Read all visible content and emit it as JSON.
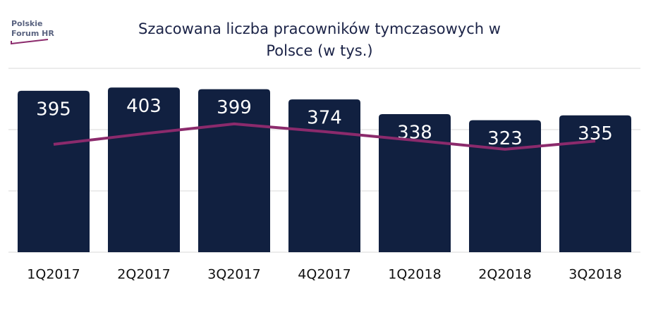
{
  "chart_data": {
    "type": "combo",
    "title_lines": [
      "Szacowana liczba pracowników tymczasowych w",
      "Polsce (w tys.)"
    ],
    "logo_lines": [
      "Polskie",
      "Forum HR"
    ],
    "categories": [
      "1Q2017",
      "2Q2017",
      "3Q2017",
      "4Q2017",
      "1Q2018",
      "2Q2018",
      "3Q2018"
    ],
    "series": [
      {
        "type": "bar",
        "color": "#112040",
        "values": [
          395,
          403,
          399,
          374,
          338,
          323,
          335
        ]
      },
      {
        "type": "line",
        "color": "#8b2a6c",
        "values": [
          264,
          290,
          314,
          295,
          274,
          252,
          272
        ]
      }
    ],
    "ylim": [
      0,
      450
    ],
    "yticks": [
      0,
      150,
      300,
      450
    ],
    "grid": true
  }
}
